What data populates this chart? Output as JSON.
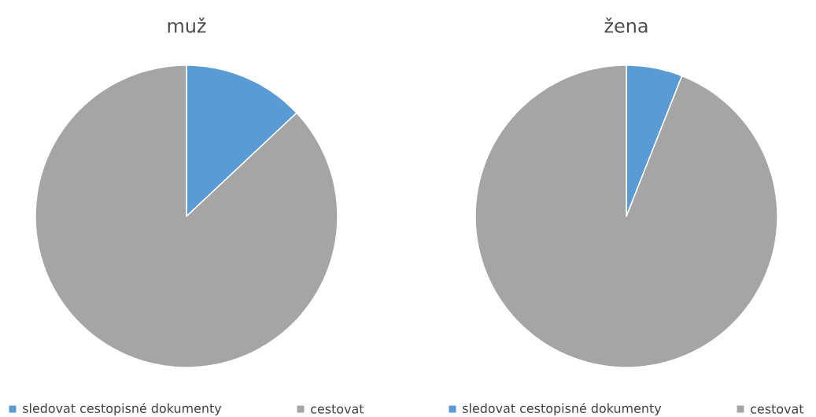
{
  "chart_data": [
    {
      "type": "pie",
      "title": "muž",
      "categories": [
        "sledovat cestopisné dokumenty",
        "cestovat"
      ],
      "values": [
        13,
        87
      ],
      "colors": [
        "#5b9bd5",
        "#a5a5a5"
      ],
      "legend": "bottom"
    },
    {
      "type": "pie",
      "title": "žena",
      "categories": [
        "sledovat cestopisné dokumenty",
        "cestovat"
      ],
      "values": [
        6,
        94
      ],
      "colors": [
        "#5b9bd5",
        "#a5a5a5"
      ],
      "legend": "bottom"
    }
  ]
}
